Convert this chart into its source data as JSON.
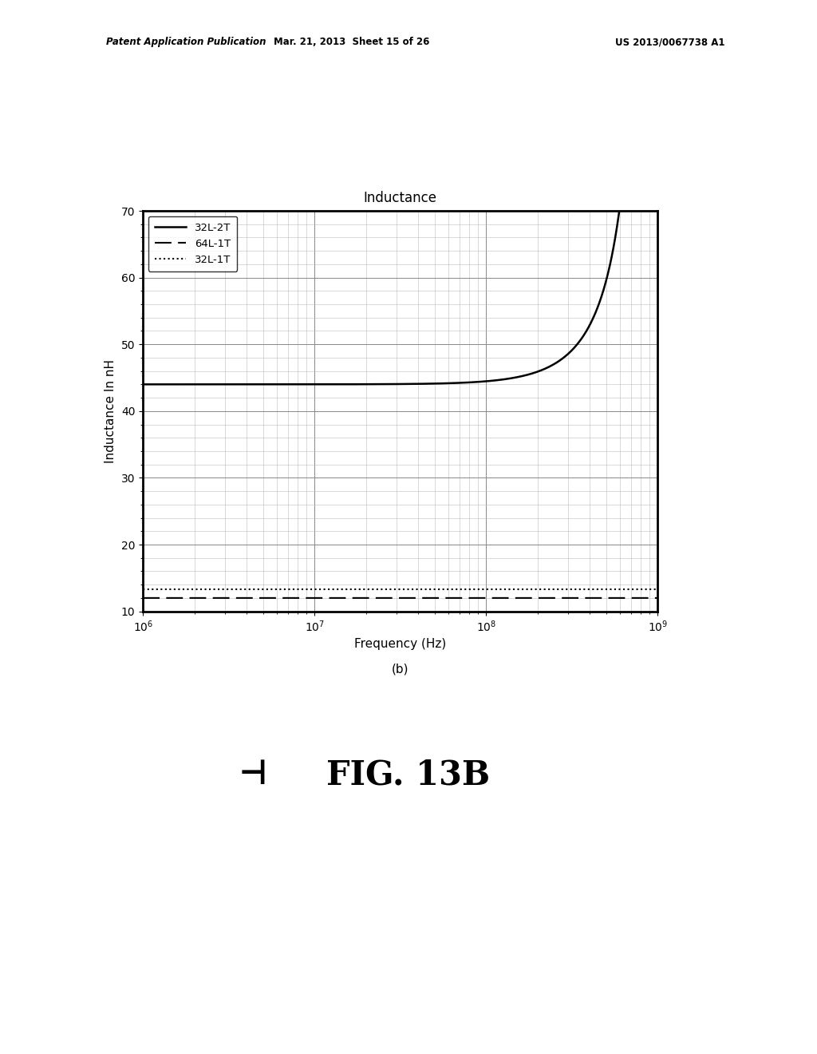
{
  "title": "Inductance",
  "xlabel": "Frequency (Hz)",
  "xlabel2": "(b)",
  "ylabel": "Inductance In nH",
  "xmin": 1000000,
  "xmax": 1000000000,
  "ymin": 10,
  "ymax": 70,
  "yticks": [
    10,
    20,
    30,
    40,
    50,
    60,
    70
  ],
  "curve_32L2T": {
    "label": "32L-2T",
    "linestyle": "solid",
    "color": "#000000",
    "linewidth": 1.8,
    "flat_value": 44.0,
    "f_res": 980000000
  },
  "curve_64L1T": {
    "label": "64L-1T",
    "linestyle": "dashed",
    "color": "#000000",
    "linewidth": 1.5,
    "flat_value": 12.0
  },
  "curve_32L1T": {
    "label": "32L-1T",
    "linestyle": "dotted",
    "color": "#000000",
    "linewidth": 1.5,
    "flat_value": 13.3
  },
  "background_color": "#ffffff",
  "grid_major_color": "#888888",
  "grid_minor_color": "#bbbbbb",
  "legend_loc": "upper left",
  "title_fontsize": 12,
  "label_fontsize": 11,
  "tick_fontsize": 10,
  "fig_width": 10.24,
  "fig_height": 13.2,
  "header_text1": "Patent Application Publication",
  "header_text2": "Mar. 21, 2013  Sheet 15 of 26",
  "header_text3": "US 2013/0067738 A1",
  "fig_label": "FIG. 13B"
}
